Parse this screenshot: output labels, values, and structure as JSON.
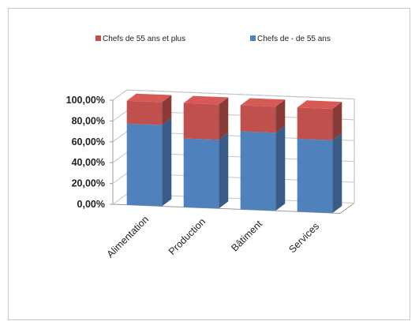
{
  "chart_data": {
    "type": "bar",
    "stacked": true,
    "three_d": true,
    "categories": [
      "Alimentation",
      "Production",
      "Bâtiment",
      "Services"
    ],
    "series": [
      {
        "name": "Chefs de - de 55 ans",
        "color": "#4f81bd",
        "values": [
          78,
          66,
          75,
          70
        ]
      },
      {
        "name": "Chefs de 55 ans et plus",
        "color": "#c0504d",
        "values": [
          22,
          34,
          25,
          30
        ]
      }
    ],
    "legend_order": [
      1,
      0
    ],
    "legend_position": "top",
    "y_ticks": [
      "0,00%",
      "20,00%",
      "40,00%",
      "60,00%",
      "80,00%",
      "100,00%"
    ],
    "ylim": [
      0,
      100
    ],
    "grid": true
  }
}
